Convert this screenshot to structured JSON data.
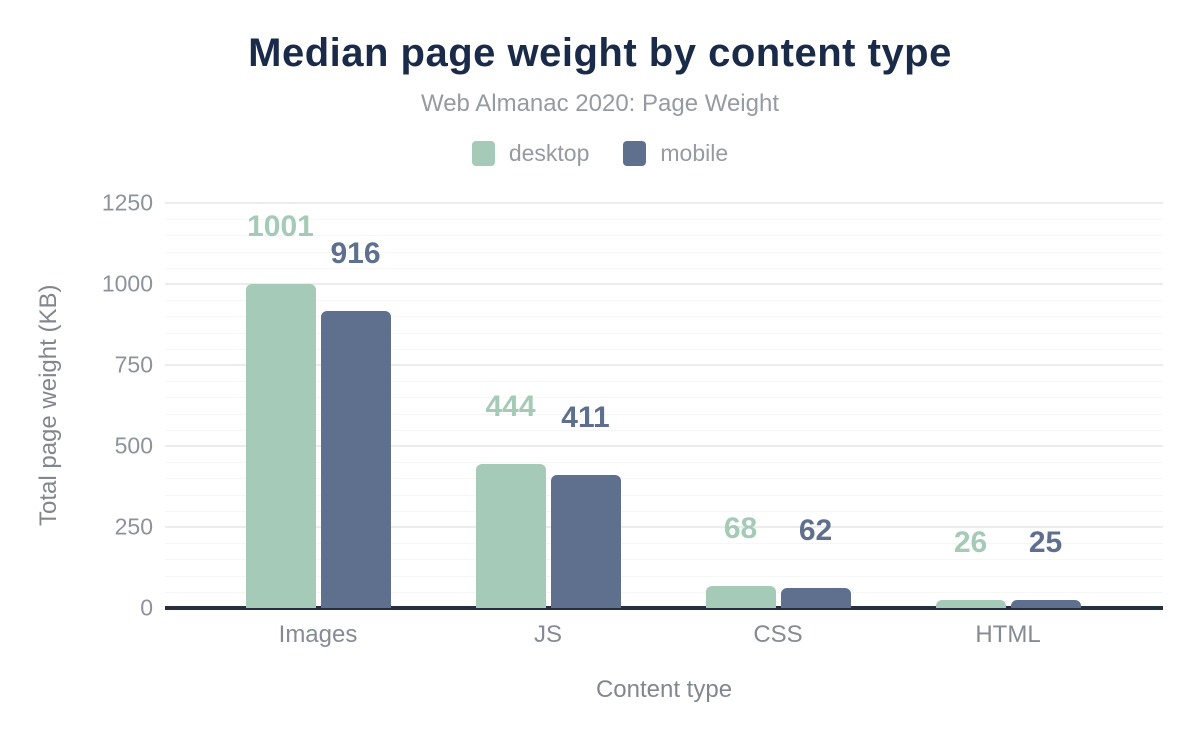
{
  "chart_data": {
    "type": "bar",
    "title": "Median page weight by content type",
    "subtitle": "Web Almanac 2020: Page Weight",
    "categories": [
      "Images",
      "JS",
      "CSS",
      "HTML"
    ],
    "series": [
      {
        "name": "desktop",
        "color": "#a6cab8",
        "values": [
          1001,
          444,
          68,
          26
        ]
      },
      {
        "name": "mobile",
        "color": "#5f708e",
        "values": [
          916,
          411,
          62,
          25
        ]
      }
    ],
    "xlabel": "Content type",
    "ylabel": "Total page weight (KB)",
    "ylim": [
      0,
      1250
    ],
    "ytick_step": 250,
    "minor_grid_step": 50,
    "grid": true,
    "legend_position": "top",
    "bar_value_labels": true
  },
  "colors": {
    "title": "#1a2b49",
    "muted_text": "#969aa1",
    "tick_text": "#8d929b",
    "axis_line": "#262e42",
    "grid_major": "#ececee",
    "grid_minor": "#f6f6f7",
    "desktop": "#a6cab8",
    "mobile": "#5f708e"
  }
}
